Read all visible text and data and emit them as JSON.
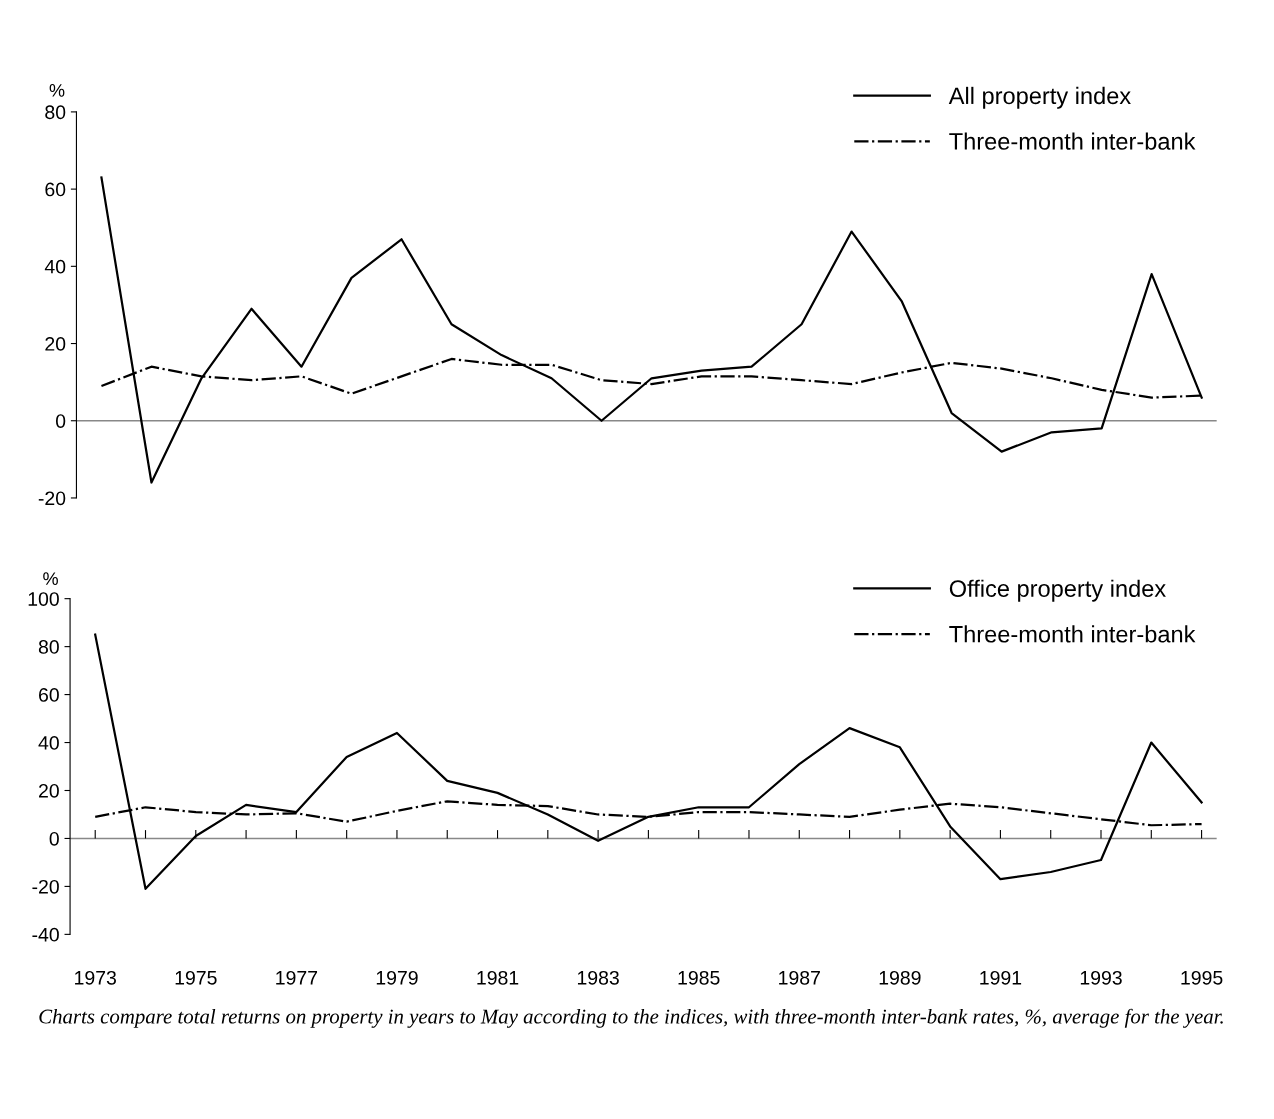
{
  "chart_data": [
    {
      "type": "line",
      "ylabel": "%",
      "x": [
        1973,
        1974,
        1975,
        1976,
        1977,
        1978,
        1979,
        1980,
        1981,
        1982,
        1983,
        1984,
        1985,
        1986,
        1987,
        1988,
        1989,
        1990,
        1991,
        1992,
        1993,
        1994,
        1995
      ],
      "series": [
        {
          "name": "All property index",
          "color": "#000000",
          "line_style": "solid",
          "values": [
            63,
            -16,
            11,
            29,
            14,
            37,
            47,
            25,
            17,
            11,
            0,
            11,
            13,
            14,
            25,
            49,
            31,
            2,
            -8,
            -3,
            -2,
            38,
            6
          ]
        },
        {
          "name": "Three-month inter-bank",
          "color": "#000000",
          "line_style": "dashdot",
          "values": [
            9,
            14,
            11.5,
            10.5,
            11.5,
            7,
            11.5,
            16,
            14.5,
            14.5,
            10.5,
            9.5,
            11.5,
            11.5,
            10.5,
            9.5,
            12.5,
            15,
            13.5,
            11,
            8,
            6,
            6.5
          ]
        }
      ],
      "ref_lines": [
        {
          "axis": "y",
          "value": 0,
          "color": "#888888"
        }
      ],
      "xlim": [
        1972.5,
        1995.3
      ],
      "ylim": [
        -20,
        80
      ],
      "yticks": [
        -20,
        0,
        20,
        40,
        60,
        80
      ],
      "tick_labels": "y",
      "grid": false,
      "legend": "top right"
    },
    {
      "type": "line",
      "ylabel": "%",
      "x": [
        1973,
        1974,
        1975,
        1976,
        1977,
        1978,
        1979,
        1980,
        1981,
        1982,
        1983,
        1984,
        1985,
        1986,
        1987,
        1988,
        1989,
        1990,
        1991,
        1992,
        1993,
        1994,
        1995
      ],
      "series": [
        {
          "name": "Office property index",
          "color": "#000000",
          "line_style": "solid",
          "values": [
            85,
            -21,
            1,
            14,
            11,
            34,
            44,
            24,
            19,
            10,
            -1,
            9,
            13,
            13,
            31,
            46,
            38,
            5,
            -17,
            -14,
            -9,
            40,
            15
          ]
        },
        {
          "name": "Three-month inter-bank",
          "color": "#000000",
          "line_style": "dashdot",
          "values": [
            9,
            13,
            11,
            10,
            10.5,
            7,
            11.5,
            15.5,
            14,
            13.5,
            10,
            9,
            11,
            11,
            10,
            9,
            12,
            14.5,
            13,
            10.5,
            8,
            5.5,
            6
          ]
        }
      ],
      "ref_lines": [
        {
          "axis": "y",
          "value": 0,
          "color": "#888888"
        }
      ],
      "xlim": [
        1972.5,
        1995.3
      ],
      "ylim": [
        -40,
        100
      ],
      "yticks": [
        -40,
        -20,
        0,
        20,
        40,
        60,
        80,
        100
      ],
      "xticks": [
        1973,
        {
          "value": 1974,
          "label": null
        },
        1975,
        {
          "value": 1976,
          "label": null
        },
        1977,
        {
          "value": 1978,
          "label": null
        },
        1979,
        {
          "value": 1980,
          "label": null
        },
        1981,
        {
          "value": 1982,
          "label": null
        },
        1983,
        {
          "value": 1984,
          "label": null
        },
        1985,
        {
          "value": 1986,
          "label": null
        },
        1987,
        {
          "value": 1988,
          "label": null
        },
        1989,
        {
          "value": 1990,
          "label": null
        },
        1991,
        {
          "value": 1992,
          "label": null
        },
        1993,
        {
          "value": 1994,
          "label": null
        },
        1995
      ],
      "grid": false,
      "legend": "top right",
      "annotations": [
        "Charts compare total returns on property in years to May according to the indices, with three-month inter-bank rates, %, average for the year."
      ]
    }
  ]
}
